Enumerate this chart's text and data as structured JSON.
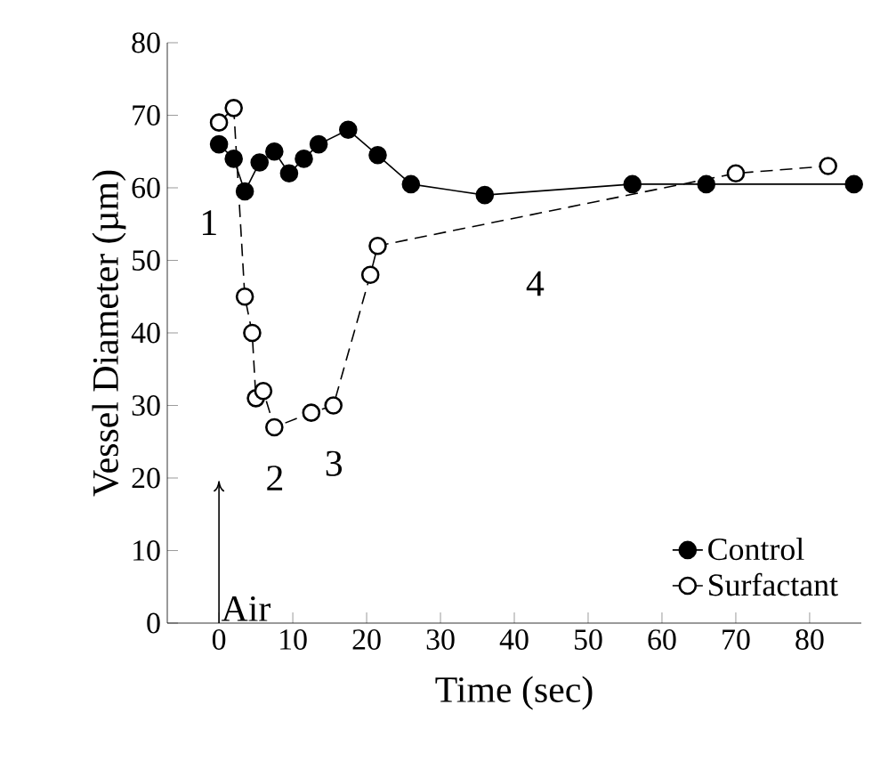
{
  "chart_data": {
    "type": "line",
    "xlabel": "Time (sec)",
    "ylabel": "Vessel Diameter (µm)",
    "xlim": [
      -7,
      87
    ],
    "xticks": [
      0,
      10,
      20,
      30,
      40,
      50,
      60,
      70,
      80
    ],
    "ylim": [
      0,
      80
    ],
    "yticks": [
      0,
      10,
      20,
      30,
      40,
      50,
      60,
      70,
      80
    ],
    "legend": "bottom right",
    "grid": false,
    "marker": "circle",
    "series": [
      {
        "name": "Control",
        "color": "#000000",
        "line_style": "solid",
        "x": [
          0,
          2,
          3.5,
          5.5,
          7.5,
          9.5,
          11.5,
          13.5,
          17.5,
          21.5,
          26,
          36,
          56,
          66,
          86
        ],
        "values": [
          66,
          64,
          59.5,
          63.5,
          65,
          62,
          64,
          66,
          68,
          64.5,
          60.5,
          59,
          60.5,
          60.5,
          60.5
        ]
      },
      {
        "name": "Surfactant",
        "color": "#ffffff",
        "line_style": "dashed",
        "x": [
          0,
          2,
          3.5,
          4.5,
          5,
          6,
          7.5,
          12.5,
          15.5,
          20.5,
          21.5,
          70,
          82.5
        ],
        "values": [
          69,
          71,
          45,
          40,
          31,
          32,
          27,
          29,
          30,
          48,
          52,
          62,
          63
        ]
      }
    ],
    "annotations": [
      "1",
      "2",
      "3",
      "4",
      "Air"
    ]
  }
}
